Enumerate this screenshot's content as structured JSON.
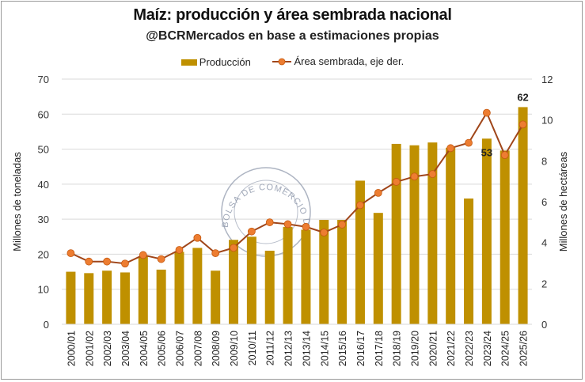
{
  "chart_data": {
    "type": "bar+line",
    "title": "Maíz: producción y área sembrada nacional",
    "subtitle": "@BCRMercados en base a estimaciones propias",
    "ylabel": "Millones de toneladas",
    "y2label": "Millones de hectáreas",
    "ylim": [
      0,
      70
    ],
    "y2lim": [
      0,
      12
    ],
    "yticks": [
      0,
      10,
      20,
      30,
      40,
      50,
      60,
      70
    ],
    "y2ticks": [
      0,
      2,
      4,
      6,
      8,
      10,
      12
    ],
    "grid": true,
    "legend_position": "top",
    "categories": [
      "2000/01",
      "2001/02",
      "2002/03",
      "2003/04",
      "2004/05",
      "2005/06",
      "2006/07",
      "2007/08",
      "2008/09",
      "2009/10",
      "2010/11",
      "2011/12",
      "2012/13",
      "2013/14",
      "2014/15",
      "2015/16",
      "2016/17",
      "2017/18",
      "2018/19",
      "2019/20",
      "2020/21",
      "2021/22",
      "2022/23",
      "2023/24",
      "2024/25",
      "2025/26"
    ],
    "series": [
      {
        "name": "Producción",
        "type": "bar",
        "axis": "left",
        "color": "#BF9000",
        "values": [
          15.0,
          14.6,
          15.3,
          14.8,
          19.4,
          15.6,
          20.7,
          21.8,
          15.3,
          24.1,
          25.0,
          21.0,
          27.8,
          27.0,
          29.8,
          29.8,
          41.0,
          31.8,
          51.5,
          51.1,
          51.9,
          50.4,
          35.9,
          53,
          49.6,
          62
        ],
        "data_labels": {
          "2023/24": "53",
          "2025/26": "62"
        }
      },
      {
        "name": "Área sembrada, eje der.",
        "type": "line",
        "axis": "right",
        "color": "#A0461A",
        "marker_color": "#ED7D31",
        "values": [
          3.48,
          3.07,
          3.07,
          2.97,
          3.39,
          3.19,
          3.64,
          4.23,
          3.48,
          3.74,
          4.54,
          4.99,
          4.9,
          4.77,
          4.49,
          4.88,
          5.83,
          6.43,
          6.97,
          7.23,
          7.35,
          8.62,
          8.88,
          10.35,
          8.28,
          9.78
        ]
      }
    ]
  },
  "watermark": {
    "text": "BOLSA DE COMERCIO DE ROSARIO"
  }
}
